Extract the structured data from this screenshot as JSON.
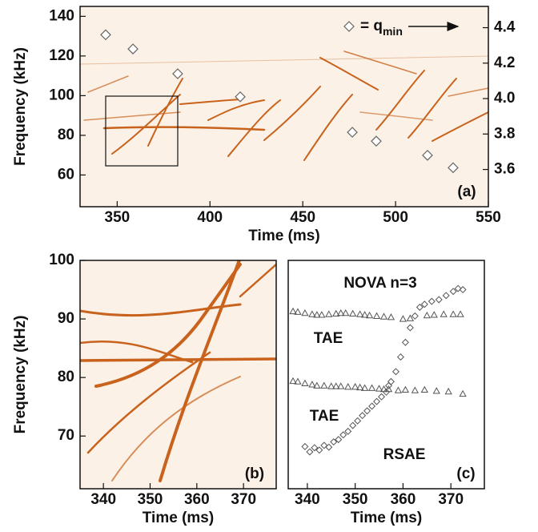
{
  "chart_data": [
    {
      "type": "scatter",
      "xlabel": "Time (ms)",
      "ylabel": "Frequency (kHz)",
      "xlim": [
        330,
        550
      ],
      "xticks": [
        350,
        400,
        450,
        500,
        550
      ],
      "ylim": [
        44,
        145
      ],
      "yticks": [
        60,
        80,
        100,
        120,
        140
      ],
      "y2lim": [
        3.39,
        4.52
      ],
      "y2ticks": [
        3.6,
        3.8,
        {
          "value": 4,
          "label": "4.0"
        },
        4.2,
        4.4
      ],
      "x": [
        343.8,
        358.5,
        382.6,
        416.3,
        476.7,
        489.6,
        517.2,
        531.0
      ],
      "values": [
        4.36,
        4.28,
        4.14,
        4.01,
        3.81,
        3.76,
        3.68,
        3.61
      ],
      "axis": "y2",
      "marker": "diamond",
      "color": "#666666",
      "legend_text": "= q",
      "legend_subscript": "min",
      "panel_label": "(a)"
    },
    {
      "type": "spectrogram",
      "xlabel": "Time (ms)",
      "ylabel": "Frequency (kHz)",
      "xlim": [
        335,
        377
      ],
      "xticks": [
        340,
        350,
        360,
        370
      ],
      "ylim": [
        61,
        100
      ],
      "yticks": [
        70,
        80,
        90,
        100
      ],
      "panel_label": "(b)"
    },
    {
      "type": "scatter",
      "title": "NOVA n=3",
      "xlabel": "Time (ms)",
      "xlim": [
        336,
        377
      ],
      "xticks": [
        340,
        350,
        360,
        370
      ],
      "ylim": [
        61,
        100
      ],
      "series": [
        {
          "name": "TAE",
          "marker": "triangle",
          "color": "#555555",
          "x": [
            337,
            338,
            339.5,
            341,
            342,
            343,
            344.5,
            346,
            347,
            348,
            349.5,
            351,
            352,
            353,
            354.5,
            356,
            357.5,
            360,
            361.5,
            365,
            366.5,
            368.5,
            370.5,
            372
          ],
          "values": [
            91.3,
            91.2,
            91.0,
            90.8,
            90.7,
            90.7,
            90.8,
            90.9,
            91.0,
            91.0,
            90.9,
            90.8,
            90.7,
            90.6,
            90.5,
            90.4,
            90.3,
            90.0,
            90.1,
            90.6,
            90.7,
            90.8,
            90.8,
            90.8
          ]
        },
        {
          "name": "TAE",
          "marker": "triangle",
          "color": "#555555",
          "x": [
            337,
            338,
            339.5,
            341,
            342,
            343.5,
            345,
            346,
            347,
            348.5,
            350,
            351,
            352,
            353.5,
            355,
            356,
            357,
            359,
            360.5,
            362.5,
            364.5,
            367,
            369.5,
            372.5
          ],
          "values": [
            79.4,
            79.3,
            79.0,
            78.8,
            78.6,
            78.6,
            78.5,
            78.5,
            78.5,
            78.4,
            78.4,
            78.3,
            78.2,
            78.2,
            78.1,
            78.0,
            78.0,
            77.8,
            77.9,
            77.8,
            77.9,
            77.7,
            77.6,
            77.2
          ]
        },
        {
          "name": "RSAE",
          "marker": "diamond",
          "color": "#555555",
          "x": [
            339.5,
            340.5,
            341.5,
            342.5,
            343.5,
            344.5,
            345.5,
            346.5,
            347.5,
            348.5,
            349.5,
            350.5,
            351.5,
            352.5,
            353.5,
            354.5,
            355.5,
            356.5,
            357,
            357.5,
            358.5,
            359.5,
            360.5,
            361.5,
            362.5,
            363.5,
            364.5,
            366,
            367.5,
            369,
            370.5,
            371.5,
            372.5
          ],
          "values": [
            68.2,
            67.3,
            68.0,
            67.6,
            68.4,
            68.1,
            69.0,
            69.4,
            70.2,
            70.8,
            71.8,
            72.6,
            73.5,
            74.3,
            75.1,
            75.9,
            76.7,
            77.5,
            78.6,
            79.3,
            81.0,
            83.5,
            86.0,
            88.5,
            90.5,
            92.0,
            92.5,
            93.0,
            93.3,
            94.0,
            94.7,
            95.2,
            95.0
          ]
        }
      ],
      "panel_label": "(c)"
    }
  ]
}
